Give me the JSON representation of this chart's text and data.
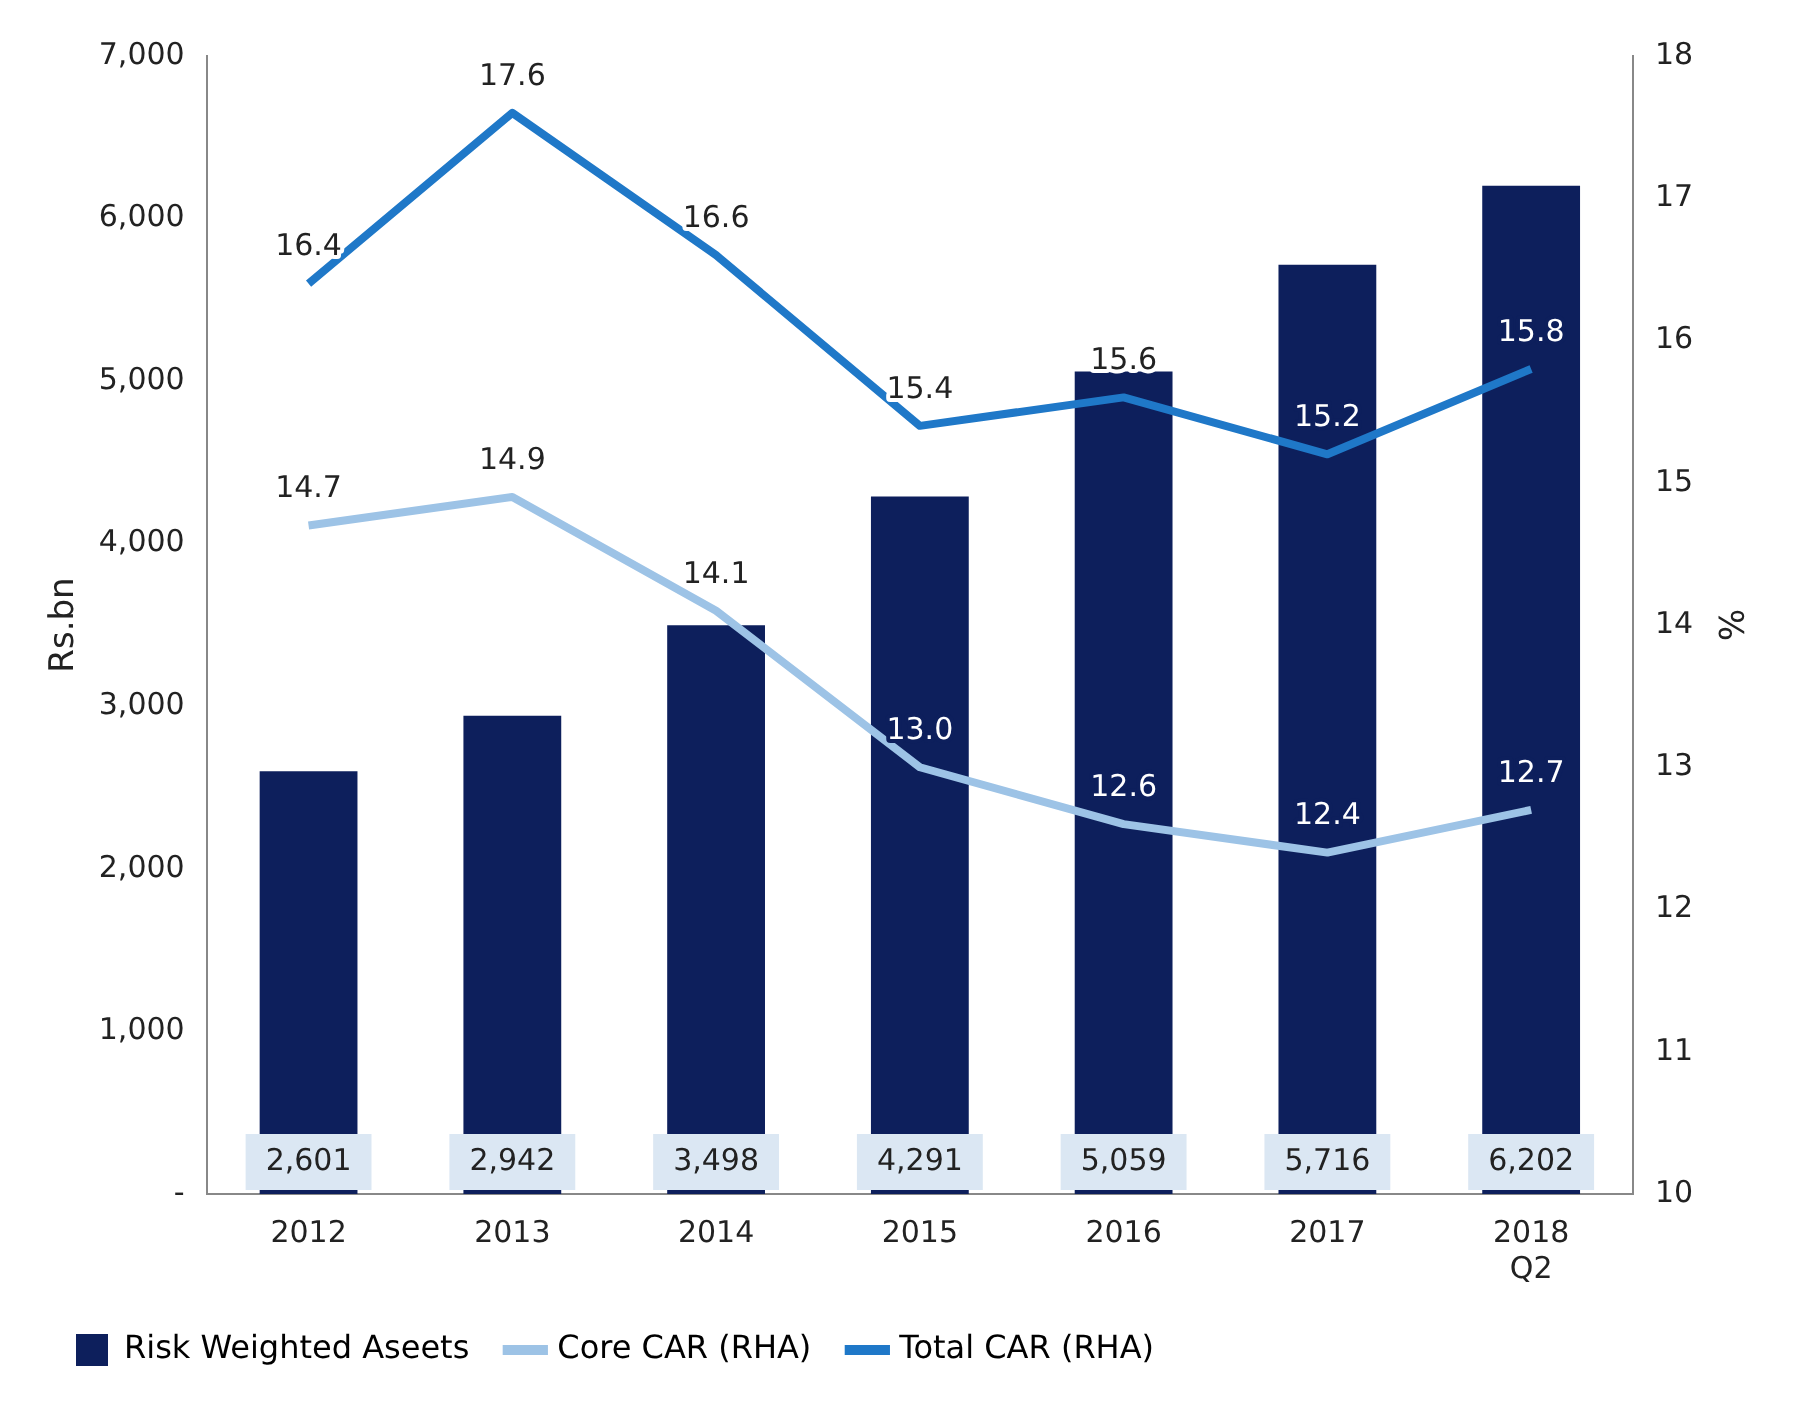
{
  "chart_data": {
    "type": "bar",
    "categories": [
      "2012",
      "2013",
      "2014",
      "2015",
      "2016",
      "2017",
      "2018\nQ2"
    ],
    "series": [
      {
        "name": "Risk Weighted Aseets",
        "color": "#0d1f5c",
        "values": [
          2601,
          2942,
          3498,
          4291,
          5059,
          5716,
          6202
        ],
        "value_labels": [
          "2,601",
          "2,942",
          "3,498",
          "4,291",
          "5,059",
          "5,716",
          "6,202"
        ]
      },
      {
        "name": "Core CAR (RHA)",
        "type": "line",
        "axis": "y2",
        "color": "#9dc3e6",
        "values": [
          14.7,
          14.9,
          14.1,
          13.0,
          12.6,
          12.4,
          12.7
        ],
        "value_labels": [
          "14.7",
          "14.9",
          "14.1",
          "13.0",
          "12.6",
          "12.4",
          "12.7"
        ]
      },
      {
        "name": "Total CAR (RHA)",
        "type": "line",
        "axis": "y2",
        "color": "#1f78c8",
        "values": [
          16.4,
          17.6,
          16.6,
          15.4,
          15.6,
          15.2,
          15.8
        ],
        "value_labels": [
          "16.4",
          "17.6",
          "16.6",
          "15.4",
          "15.6",
          "15.2",
          "15.8"
        ]
      }
    ],
    "ylabel": "Rs.bn",
    "y2label": "%",
    "ylim": [
      0,
      7000
    ],
    "yticks": [
      {
        "value": 0,
        "label": "-"
      },
      {
        "value": 1000,
        "label": "1,000"
      },
      {
        "value": 2000,
        "label": "2,000"
      },
      {
        "value": 3000,
        "label": "3,000"
      },
      {
        "value": 4000,
        "label": "4,000"
      },
      {
        "value": 5000,
        "label": "5,000"
      },
      {
        "value": 6000,
        "label": "6,000"
      },
      {
        "value": 7000,
        "label": "7,000"
      }
    ],
    "y2lim": [
      10,
      18
    ],
    "y2ticks": [
      10,
      11,
      12,
      13,
      14,
      15,
      16,
      17,
      18
    ],
    "legend": "bottom",
    "grid": false,
    "marker": "none"
  }
}
